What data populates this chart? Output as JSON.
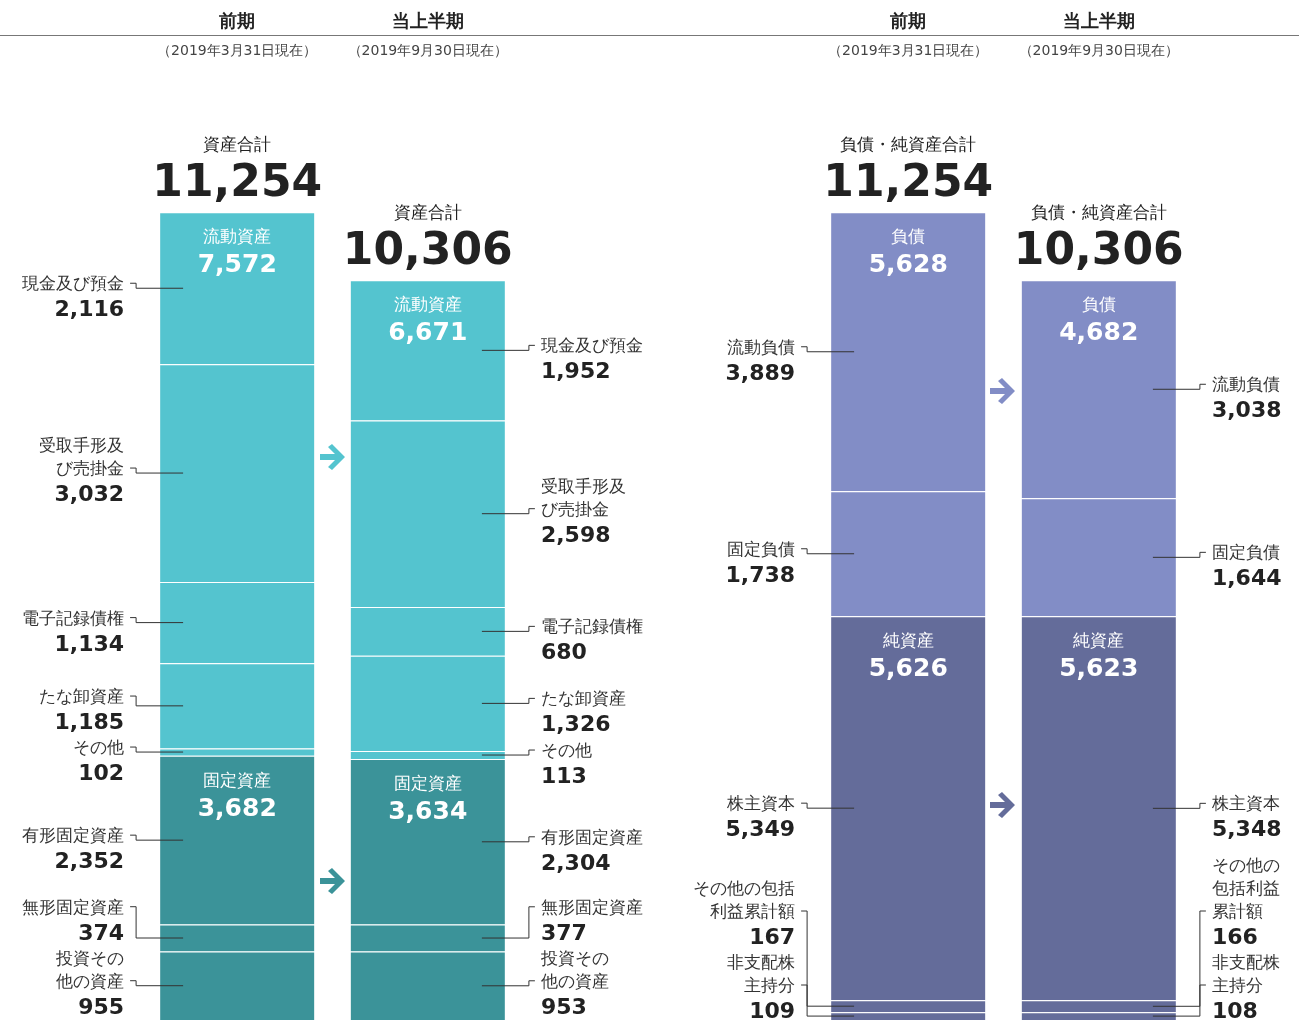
{
  "chart_data": [
    {
      "type": "bar",
      "stacked": true,
      "categories": [
        "前期（2019年3月31日現在）",
        "当上半期（2019年9月30日現在）"
      ],
      "ylim": [
        0,
        11254
      ],
      "tick_labels": false,
      "totals": [
        "11,254",
        "10,306"
      ],
      "series": [
        {
          "name": "投資その他の資産",
          "color": "#3b9399",
          "values": [
            955,
            953
          ],
          "value_labels": [
            "955",
            "953"
          ]
        },
        {
          "name": "無形固定資産",
          "color": "#3b9399",
          "values": [
            374,
            377
          ],
          "value_labels": [
            "374",
            "377"
          ]
        },
        {
          "name": "有形固定資産",
          "color": "#3b9399",
          "values": [
            2352,
            2304
          ],
          "value_labels": [
            "2,352",
            "2,304"
          ]
        },
        {
          "name": "その他",
          "color": "#54c4cf",
          "values": [
            102,
            113
          ],
          "value_labels": [
            "102",
            "113"
          ]
        },
        {
          "name": "たな卸資産",
          "color": "#54c4cf",
          "values": [
            1185,
            1326
          ],
          "value_labels": [
            "1,185",
            "1,326"
          ]
        },
        {
          "name": "電子記録債権",
          "color": "#54c4cf",
          "values": [
            1134,
            680
          ],
          "value_labels": [
            "1,134",
            "680"
          ]
        },
        {
          "name": "受取手形及び売掛金",
          "color": "#54c4cf",
          "values": [
            3032,
            2598
          ],
          "value_labels": [
            "3,032",
            "2,598"
          ]
        },
        {
          "name": "現金及び預金",
          "color": "#54c4cf",
          "values": [
            2116,
            1952
          ],
          "value_labels": [
            "2,116",
            "1,952"
          ]
        }
      ],
      "annotations": [
        "資産合計",
        "資産合計",
        {
          "text": "流動資産\n7,572",
          "x": "前期（2019年3月31日現在）",
          "y": 11254
        },
        {
          "text": "流動資産\n6,671",
          "x": "当上半期（2019年9月30日現在）",
          "y": 10306
        },
        {
          "text": "固定資産\n3,682",
          "x": "前期（2019年3月31日現在）",
          "y": 3682
        },
        {
          "text": "固定資産\n3,634",
          "x": "当上半期（2019年9月30日現在）",
          "y": 3634
        }
      ]
    },
    {
      "type": "bar",
      "stacked": true,
      "categories": [
        "前期（2019年3月31日現在）",
        "当上半期（2019年9月30日現在）"
      ],
      "ylim": [
        0,
        11254
      ],
      "tick_labels": false,
      "totals": [
        "11,254",
        "10,306"
      ],
      "series": [
        {
          "name": "非支配株主持分",
          "color": "#646c9a",
          "values": [
            109,
            108
          ],
          "value_labels": [
            "109",
            "108"
          ]
        },
        {
          "name": "その他の包括利益累計額",
          "color": "#646c9a",
          "values": [
            167,
            166
          ],
          "value_labels": [
            "167",
            "166"
          ]
        },
        {
          "name": "株主資本",
          "color": "#646c9a",
          "values": [
            5349,
            5348
          ],
          "value_labels": [
            "5,349",
            "5,348"
          ]
        },
        {
          "name": "固定負債",
          "color": "#828dc6",
          "values": [
            1738,
            1644
          ],
          "value_labels": [
            "1,738",
            "1,644"
          ]
        },
        {
          "name": "流動負債",
          "color": "#828dc6",
          "values": [
            3889,
            3038
          ],
          "value_labels": [
            "3,889",
            "3,038"
          ]
        }
      ],
      "annotations": [
        "負債・純資産合計",
        "負債・純資産合計",
        {
          "text": "負債\n5,628",
          "x": "前期（2019年3月31日現在）",
          "y": 11254
        },
        {
          "text": "負債\n4,682",
          "x": "当上半期（2019年9月30日現在）",
          "y": 10306
        },
        {
          "text": "純資産\n5,626",
          "x": "前期（2019年3月31日現在）",
          "y": 5626
        },
        {
          "text": "純資産\n5,623",
          "x": "当上半期（2019年9月30日現在）",
          "y": 5623
        }
      ]
    }
  ]
}
